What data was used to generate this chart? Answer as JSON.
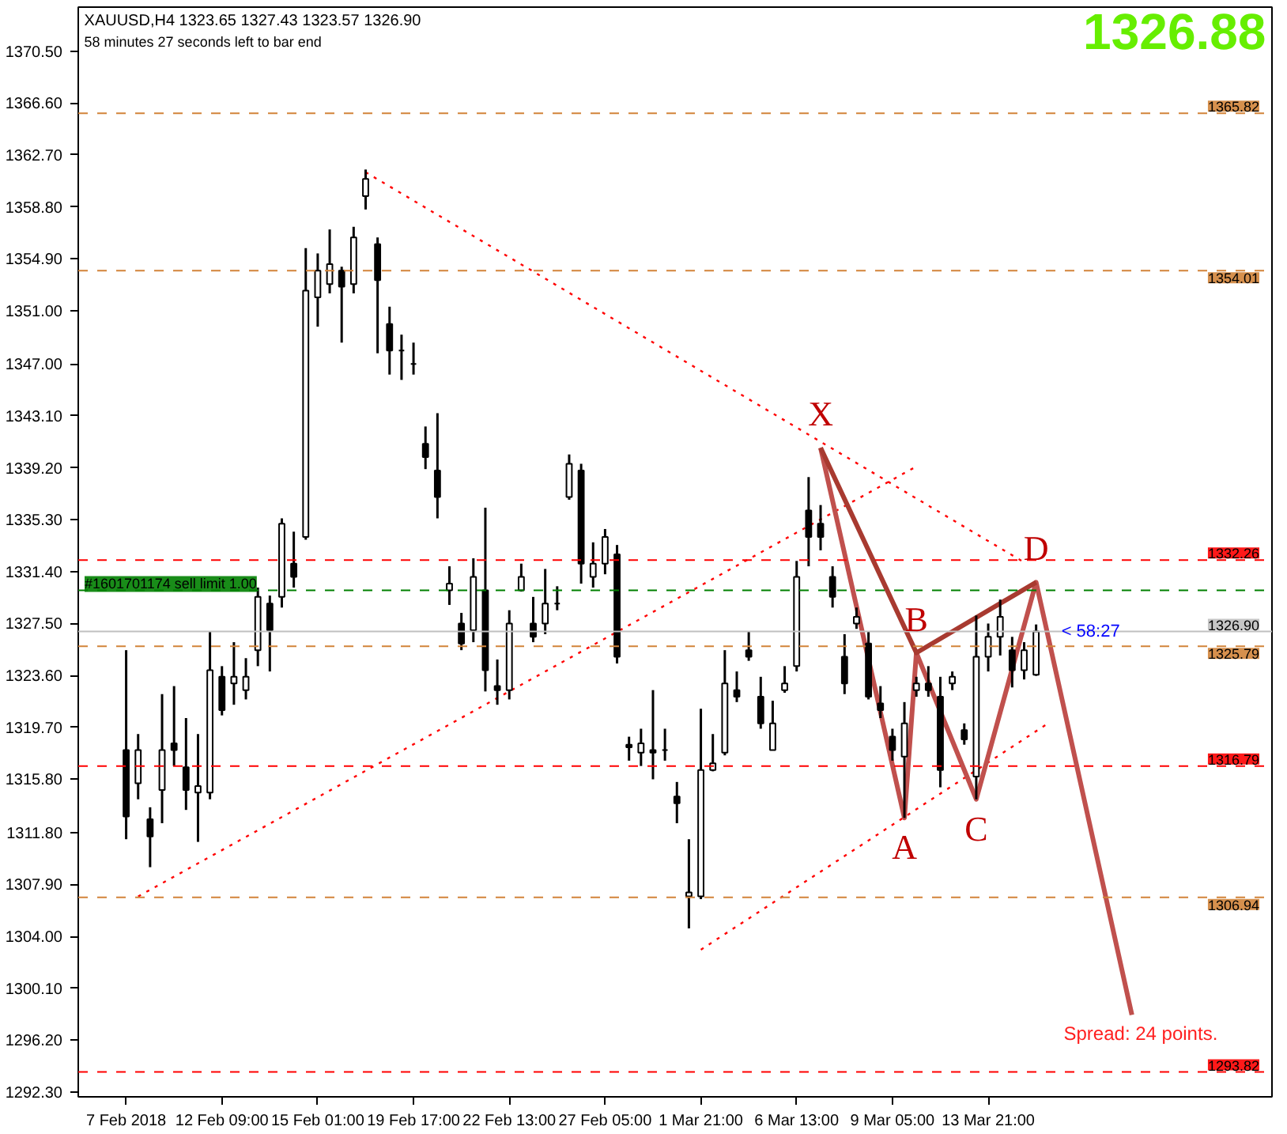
{
  "chart_data": {
    "type": "candlestick",
    "color": "#000000",
    "categories": [
      "7 Feb 2018",
      null,
      null,
      null,
      null,
      null,
      null,
      null,
      "12 Feb 09:00",
      null,
      null,
      null,
      null,
      null,
      null,
      null,
      "15 Feb 01:00",
      null,
      null,
      null,
      null,
      null,
      null,
      null,
      "19 Feb 17:00",
      null,
      null,
      null,
      null,
      null,
      null,
      null,
      "22 Feb 13:00",
      null,
      null,
      null,
      null,
      null,
      null,
      null,
      "27 Feb 05:00",
      null,
      null,
      null,
      null,
      null,
      null,
      null,
      "1 Mar 21:00",
      null,
      null,
      null,
      null,
      null,
      null,
      null,
      "6 Mar 13:00",
      null,
      null,
      null,
      null,
      null,
      null,
      null,
      "9 Mar 05:00",
      null,
      null,
      null,
      null,
      null,
      null,
      null,
      "13 Mar 21:00",
      null,
      null,
      null,
      null,
      null,
      null,
      null,
      null,
      null,
      null,
      null,
      null,
      null
    ],
    "ohlc": [
      [
        1318,
        1325.5,
        1311.3,
        1313
      ],
      [
        1315.5,
        1319.2,
        1314.3,
        1318
      ],
      [
        1312.8,
        1313.7,
        1309.2,
        1311.5
      ],
      [
        1315,
        1322.2,
        1312.5,
        1318
      ],
      [
        1318.5,
        1322.8,
        1316.8,
        1318
      ],
      [
        1316.7,
        1320.4,
        1313.5,
        1315
      ],
      [
        1314.8,
        1319.2,
        1311.1,
        1315.3
      ],
      [
        1314.8,
        1326.9,
        1314.3,
        1324
      ],
      [
        1323.5,
        1324.3,
        1320.6,
        1321
      ],
      [
        1323,
        1326.1,
        1321.4,
        1323.5
      ],
      [
        1322.5,
        1324.9,
        1321.8,
        1323.5
      ],
      [
        1325.5,
        1330.2,
        1324.3,
        1329.5
      ],
      [
        1329,
        1329.6,
        1323.9,
        1327
      ],
      [
        1329.5,
        1335.4,
        1328.7,
        1335
      ],
      [
        1332,
        1334.4,
        1330.2,
        1331
      ],
      [
        1334,
        1355.7,
        1333.8,
        1352.5
      ],
      [
        1352,
        1355.3,
        1349.8,
        1354
      ],
      [
        1353,
        1357.1,
        1352.3,
        1354.5
      ],
      [
        1354,
        1354.3,
        1348.6,
        1352.8
      ],
      [
        1353,
        1357.3,
        1352.3,
        1356.5
      ],
      [
        1359.6,
        1361.6,
        1358.6,
        1360.9
      ],
      [
        1356,
        1356.5,
        1347.8,
        1353.3
      ],
      [
        1350,
        1351.3,
        1346.2,
        1348
      ],
      [
        1348,
        1349.2,
        1345.8,
        1348
      ],
      [
        1347,
        1348.6,
        1346.2,
        1347
      ],
      [
        1341,
        1342.3,
        1339.1,
        1340
      ],
      [
        1339,
        1343.3,
        1335.4,
        1337
      ],
      [
        1330,
        1331.8,
        1328.9,
        1330.5
      ],
      [
        1327.5,
        1328.3,
        1325.5,
        1326
      ],
      [
        1327,
        1332.4,
        1326.1,
        1331
      ],
      [
        1330,
        1336.2,
        1322.4,
        1324
      ],
      [
        1322.8,
        1324.8,
        1321.4,
        1322.5
      ],
      [
        1322.5,
        1328.5,
        1321.8,
        1327.5
      ],
      [
        1330,
        1332,
        1329.9,
        1331
      ],
      [
        1327.5,
        1329.5,
        1326.1,
        1326.5
      ],
      [
        1327.5,
        1331.6,
        1326.7,
        1329
      ],
      [
        1329,
        1330.3,
        1328.5,
        1329
      ],
      [
        1337,
        1340.2,
        1336.8,
        1339.5
      ],
      [
        1339,
        1339.5,
        1330.5,
        1332
      ],
      [
        1331,
        1333.6,
        1330.2,
        1332
      ],
      [
        1332,
        1334.6,
        1331.2,
        1334
      ],
      [
        1332.7,
        1333.4,
        1324.5,
        1325
      ],
      [
        1318.4,
        1319,
        1317.2,
        1318.2
      ],
      [
        1317.8,
        1319.6,
        1316.8,
        1318.5
      ],
      [
        1318,
        1322.5,
        1315.8,
        1317.8
      ],
      [
        1318,
        1319.6,
        1317.2,
        1318
      ],
      [
        1314.5,
        1315.6,
        1312.5,
        1314
      ],
      [
        1307,
        1311.3,
        1304.6,
        1307.3
      ],
      [
        1307,
        1321.1,
        1306.8,
        1316.5
      ],
      [
        1316.5,
        1319.2,
        1316.4,
        1317
      ],
      [
        1317.8,
        1325.5,
        1317.6,
        1323
      ],
      [
        1322.5,
        1323.9,
        1321.6,
        1322
      ],
      [
        1325.5,
        1326.9,
        1324.7,
        1325
      ],
      [
        1322,
        1323.5,
        1319.6,
        1320
      ],
      [
        1318,
        1321.7,
        1318,
        1320
      ],
      [
        1322.5,
        1324.3,
        1322.3,
        1323
      ],
      [
        1324.3,
        1332.2,
        1323.9,
        1331
      ],
      [
        1336,
        1338.5,
        1331.8,
        1334
      ],
      [
        1335,
        1336.4,
        1333,
        1334
      ],
      [
        1331,
        1331.8,
        1328.7,
        1329.5
      ],
      [
        1325,
        1326.7,
        1322.2,
        1323
      ],
      [
        1327.5,
        1328.7,
        1327.1,
        1328
      ],
      [
        1326,
        1326.9,
        1321.8,
        1322
      ],
      [
        1321.5,
        1322.8,
        1320.4,
        1321
      ],
      [
        1319,
        1319.6,
        1317.2,
        1318
      ],
      [
        1317.5,
        1321.6,
        1312.9,
        1320
      ],
      [
        1322.5,
        1323.5,
        1322,
        1323
      ],
      [
        1323,
        1324.3,
        1322,
        1322.5
      ],
      [
        1322,
        1323.5,
        1315.2,
        1316.5
      ],
      [
        1323,
        1323.9,
        1322.5,
        1323.5
      ],
      [
        1319.5,
        1320,
        1318.4,
        1318.8
      ],
      [
        1316,
        1328.1,
        1314.3,
        1325
      ],
      [
        1325,
        1327.5,
        1323.9,
        1326.5
      ],
      [
        1326.5,
        1329.3,
        1325.1,
        1328
      ],
      [
        1325.5,
        1326.5,
        1322.7,
        1324
      ],
      [
        1324,
        1326.1,
        1323.3,
        1325.5
      ],
      [
        1323.65,
        1327.43,
        1323.57,
        1326.9
      ],
      null,
      null,
      null,
      null,
      null,
      null,
      null,
      null,
      null
    ],
    "series": [
      {
        "type": "line",
        "color": "#ff0000",
        "line_style": "dotted",
        "values": [
          null,
          null,
          null,
          null,
          null,
          null,
          null,
          null,
          null,
          null,
          null,
          null,
          null,
          null,
          null,
          null,
          null,
          null,
          null,
          null,
          1361.4,
          null,
          null,
          null,
          null,
          null,
          null,
          null,
          null,
          null,
          null,
          null,
          null,
          null,
          null,
          null,
          null,
          null,
          null,
          null,
          null,
          null,
          null,
          null,
          null,
          null,
          null,
          null,
          null,
          null,
          null,
          null,
          null,
          null,
          null,
          null,
          null,
          null,
          null,
          null,
          null,
          null,
          null,
          null,
          null,
          null,
          null,
          null,
          null,
          null,
          null,
          null,
          null,
          null,
          null,
          1332.1,
          null,
          null,
          null,
          null,
          null,
          null,
          null,
          null,
          null,
          null
        ]
      },
      {
        "type": "line",
        "color": "#ff0000",
        "line_style": "dotted",
        "values": [
          null,
          1307.0,
          null,
          null,
          null,
          null,
          null,
          null,
          null,
          null,
          null,
          null,
          null,
          null,
          null,
          null,
          null,
          null,
          null,
          null,
          null,
          null,
          null,
          null,
          null,
          null,
          null,
          null,
          null,
          null,
          null,
          null,
          null,
          null,
          null,
          null,
          null,
          null,
          null,
          null,
          null,
          null,
          null,
          null,
          null,
          null,
          null,
          null,
          null,
          null,
          null,
          null,
          null,
          null,
          null,
          null,
          null,
          null,
          null,
          null,
          null,
          null,
          null,
          null,
          null,
          null,
          1339.3,
          null,
          null,
          null,
          null,
          null,
          null,
          null,
          null,
          null,
          null,
          null,
          null,
          null,
          null,
          null,
          null,
          null,
          null,
          null
        ]
      },
      {
        "type": "line",
        "color": "#ff0000",
        "line_style": "dotted",
        "values": [
          null,
          null,
          null,
          null,
          null,
          null,
          null,
          null,
          null,
          null,
          null,
          null,
          null,
          null,
          null,
          null,
          null,
          null,
          null,
          null,
          null,
          null,
          null,
          null,
          null,
          null,
          null,
          null,
          null,
          null,
          null,
          null,
          null,
          null,
          null,
          null,
          null,
          null,
          null,
          null,
          null,
          null,
          null,
          null,
          null,
          null,
          null,
          null,
          1303.0,
          null,
          null,
          null,
          null,
          null,
          null,
          null,
          null,
          null,
          null,
          null,
          null,
          null,
          null,
          null,
          null,
          null,
          null,
          null,
          null,
          null,
          null,
          null,
          null,
          null,
          null,
          null,
          null,
          1320.0,
          null,
          null,
          null,
          null,
          null,
          null,
          null,
          null
        ]
      },
      {
        "type": "line",
        "color": "#c0504d",
        "line_style": "solid",
        "values": [
          null,
          null,
          null,
          null,
          null,
          null,
          null,
          null,
          null,
          null,
          null,
          null,
          null,
          null,
          null,
          null,
          null,
          null,
          null,
          null,
          null,
          null,
          null,
          null,
          null,
          null,
          null,
          null,
          null,
          null,
          null,
          null,
          null,
          null,
          null,
          null,
          null,
          null,
          null,
          null,
          null,
          null,
          null,
          null,
          null,
          null,
          null,
          null,
          null,
          null,
          null,
          null,
          null,
          null,
          null,
          null,
          null,
          null,
          1340.7,
          null,
          null,
          null,
          null,
          null,
          null,
          1312.9,
          1325.3,
          null,
          null,
          null,
          null,
          1314.3,
          null,
          null,
          null,
          null,
          1330.6,
          null,
          null,
          null,
          null,
          null,
          null,
          null,
          1298.1,
          null
        ]
      },
      {
        "type": "line",
        "color": "#a83a30",
        "line_style": "solid",
        "values": [
          null,
          null,
          null,
          null,
          null,
          null,
          null,
          null,
          null,
          null,
          null,
          null,
          null,
          null,
          null,
          null,
          null,
          null,
          null,
          null,
          null,
          null,
          null,
          null,
          null,
          null,
          null,
          null,
          null,
          null,
          null,
          null,
          null,
          null,
          null,
          null,
          null,
          null,
          null,
          null,
          null,
          null,
          null,
          null,
          null,
          null,
          null,
          null,
          null,
          null,
          null,
          null,
          null,
          null,
          null,
          null,
          null,
          null,
          1340.7,
          null,
          null,
          null,
          null,
          null,
          null,
          null,
          1325.3,
          null,
          null,
          null,
          null,
          null,
          null,
          null,
          null,
          null,
          1330.6,
          null,
          null,
          null,
          null,
          null,
          null,
          null,
          null,
          null
        ]
      }
    ],
    "ylim": [
      1291.95,
      1373.8
    ],
    "yticks": [
      {
        "value": 1370.5,
        "label": "1370.50"
      },
      {
        "value": 1366.6,
        "label": "1366.60"
      },
      {
        "value": 1362.7,
        "label": "1362.70"
      },
      {
        "value": 1358.8,
        "label": "1358.80"
      },
      {
        "value": 1354.9,
        "label": "1354.90"
      },
      {
        "value": 1351.0,
        "label": "1351.00"
      },
      {
        "value": 1347.0,
        "label": "1347.00"
      },
      {
        "value": 1343.1,
        "label": "1343.10"
      },
      {
        "value": 1339.2,
        "label": "1339.20"
      },
      {
        "value": 1335.3,
        "label": "1335.30"
      },
      {
        "value": 1331.4,
        "label": "1331.40"
      },
      {
        "value": 1327.5,
        "label": "1327.50"
      },
      {
        "value": 1323.6,
        "label": "1323.60"
      },
      {
        "value": 1319.7,
        "label": "1319.70"
      },
      {
        "value": 1315.8,
        "label": "1315.80"
      },
      {
        "value": 1311.8,
        "label": "1311.80"
      },
      {
        "value": 1307.9,
        "label": "1307.90"
      },
      {
        "value": 1304.0,
        "label": "1304.00"
      },
      {
        "value": 1300.1,
        "label": "1300.10"
      },
      {
        "value": 1296.2,
        "label": "1296.20"
      },
      {
        "value": 1292.3,
        "label": "1292.30"
      }
    ],
    "ref_lines": [
      {
        "axis": "y",
        "value": 1332.26,
        "label": "1332.26",
        "color": "#ff0000",
        "line_style": "dashed"
      },
      {
        "axis": "y",
        "value": 1330.0,
        "label": "#1601701174 sell limit 1.00",
        "color": "#008000",
        "line_style": "dashed"
      },
      {
        "axis": "y",
        "value": 1326.9,
        "label": "1326.90",
        "color": "#c0c0c0",
        "line_style": "solid"
      },
      {
        "axis": "y",
        "value": 1325.79,
        "label": "1325.79",
        "color": "#d2843a",
        "line_style": "dashed"
      },
      {
        "axis": "y",
        "value": 1365.82,
        "label": "1365.82",
        "color": "#d2843a",
        "line_style": "dashed"
      },
      {
        "axis": "y",
        "value": 1354.01,
        "label": "1354.01",
        "color": "#d2843a",
        "line_style": "dashed"
      },
      {
        "axis": "y",
        "value": 1316.79,
        "label": "1316.79",
        "color": "#ff0000",
        "line_style": "dashed"
      },
      {
        "axis": "y",
        "value": 1306.94,
        "label": "1306.94",
        "color": "#d2843a",
        "line_style": "dashed"
      },
      {
        "axis": "y",
        "value": 1293.82,
        "label": "1293.82",
        "color": "#ff0000",
        "line_style": "dashed"
      }
    ],
    "annotations": [
      "XAUUSD,H4  1323.65 1327.43 1323.57 1326.90",
      "58 minutes 27 seconds left to bar end",
      "1326.88",
      "Spread: 24 points.",
      "< 58:27",
      "X",
      "A",
      "B",
      "C",
      "D"
    ],
    "grid": false
  }
}
